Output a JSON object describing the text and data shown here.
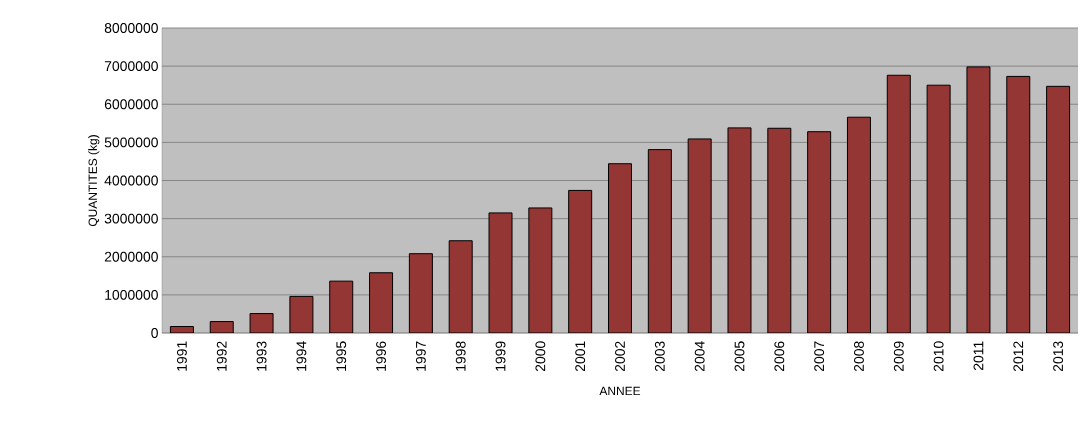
{
  "chart_data": {
    "type": "bar",
    "xlabel": "ANNEE",
    "ylabel": "QUANTITES (kg)",
    "categories": [
      "1991",
      "1992",
      "1993",
      "1994",
      "1995",
      "1996",
      "1997",
      "1998",
      "1999",
      "2000",
      "2001",
      "2002",
      "2003",
      "2004",
      "2005",
      "2006",
      "2007",
      "2008",
      "2009",
      "2010",
      "2011",
      "2012",
      "2013"
    ],
    "values": [
      170000,
      300000,
      510000,
      960000,
      1360000,
      1580000,
      2080000,
      2420000,
      3150000,
      3280000,
      3740000,
      4440000,
      4810000,
      5090000,
      5380000,
      5370000,
      5280000,
      5660000,
      6760000,
      6500000,
      6980000,
      6730000,
      6470000
    ],
    "color": "#943634",
    "ylim": [
      0,
      8000000
    ],
    "yticks": [
      0,
      1000000,
      2000000,
      3000000,
      4000000,
      5000000,
      6000000,
      7000000,
      8000000
    ],
    "grid": "y"
  }
}
